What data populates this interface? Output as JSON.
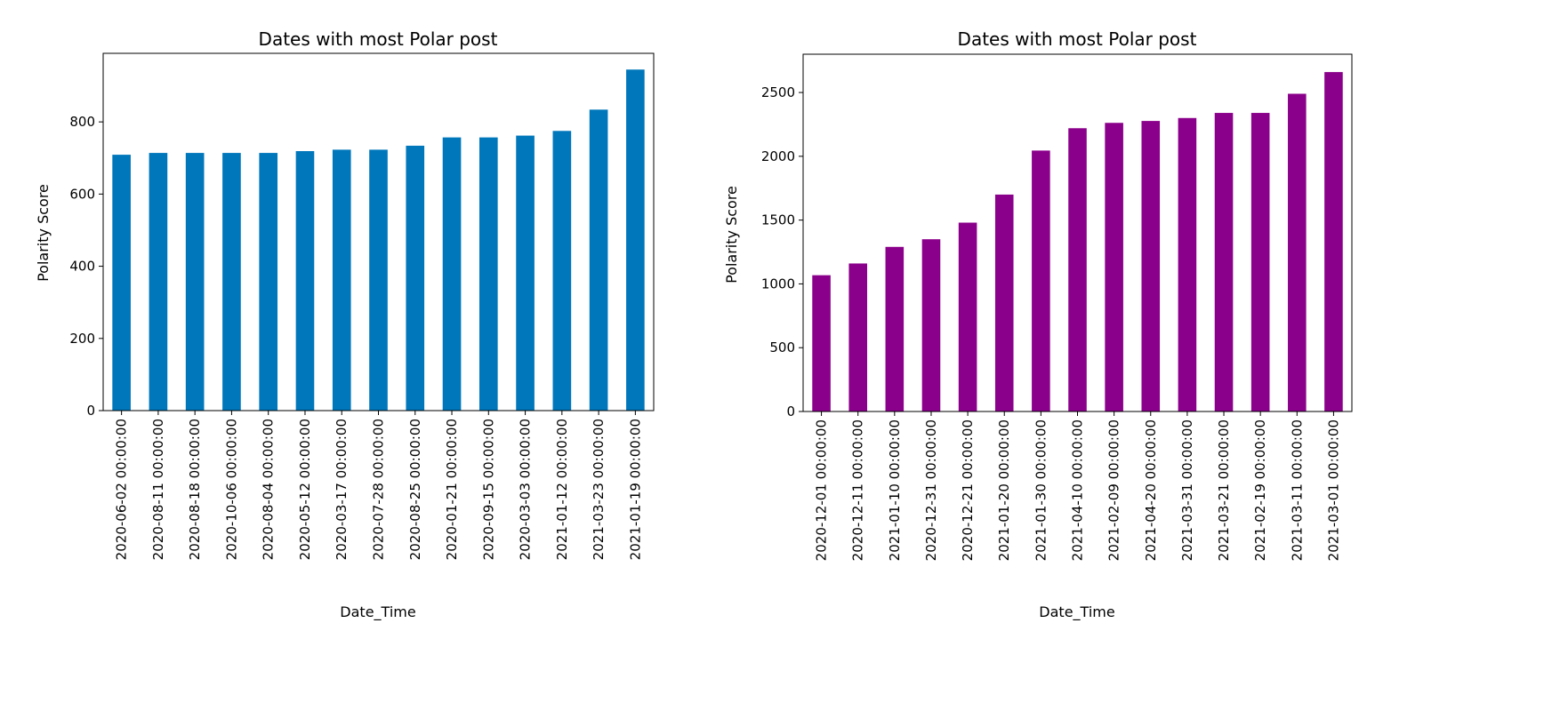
{
  "chart_data": [
    {
      "type": "bar",
      "title": "Dates with most Polar post",
      "xlabel": "Date_Time",
      "ylabel": "Polarity Score",
      "bar_color": "#0077bb",
      "ylim": [
        0,
        990
      ],
      "yticks": [
        0,
        200,
        400,
        600,
        800
      ],
      "grid": false,
      "categories": [
        "2020-06-02 00:00:00",
        "2020-08-11 00:00:00",
        "2020-08-18 00:00:00",
        "2020-10-06 00:00:00",
        "2020-08-04 00:00:00",
        "2020-05-12 00:00:00",
        "2020-03-17 00:00:00",
        "2020-07-28 00:00:00",
        "2020-08-25 00:00:00",
        "2020-01-21 00:00:00",
        "2020-09-15 00:00:00",
        "2020-03-03 00:00:00",
        "2021-01-12 00:00:00",
        "2021-03-23 00:00:00",
        "2021-01-19 00:00:00"
      ],
      "values": [
        709,
        714,
        714,
        714,
        714,
        719,
        723,
        723,
        734,
        757,
        757,
        762,
        775,
        834,
        945
      ]
    },
    {
      "type": "bar",
      "title": "Dates with most Polar post",
      "xlabel": "Date_Time",
      "ylabel": "Polarity Score",
      "bar_color": "#8b008b",
      "ylim": [
        0,
        2800
      ],
      "yticks": [
        0,
        500,
        1000,
        1500,
        2000,
        2500
      ],
      "grid": false,
      "categories": [
        "2020-12-01 00:00:00",
        "2020-12-11 00:00:00",
        "2021-01-10 00:00:00",
        "2020-12-31 00:00:00",
        "2020-12-21 00:00:00",
        "2021-01-20 00:00:00",
        "2021-01-30 00:00:00",
        "2021-04-10 00:00:00",
        "2021-02-09 00:00:00",
        "2021-04-20 00:00:00",
        "2021-03-31 00:00:00",
        "2021-03-21 00:00:00",
        "2021-02-19 00:00:00",
        "2021-03-11 00:00:00",
        "2021-03-01 00:00:00"
      ],
      "values": [
        1068,
        1160,
        1290,
        1350,
        1480,
        1700,
        2045,
        2220,
        2262,
        2277,
        2300,
        2340,
        2340,
        2490,
        2660
      ]
    }
  ]
}
